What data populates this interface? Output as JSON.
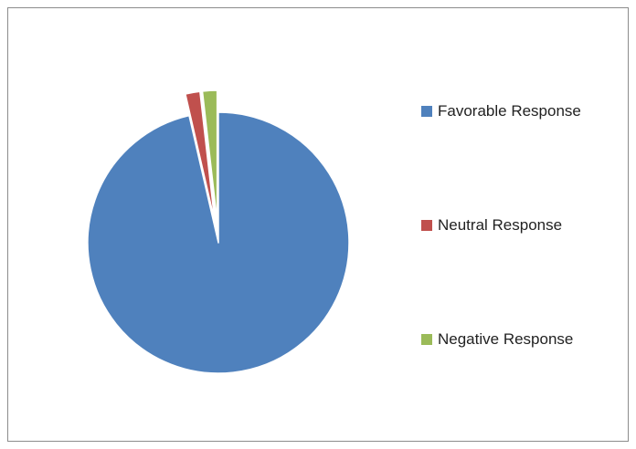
{
  "chart_data": {
    "type": "pie",
    "title": "",
    "categories": [
      "Favorable Response",
      "Neutral Response",
      "Negative Response"
    ],
    "values": [
      96.4,
      1.8,
      1.8
    ],
    "unit": "%",
    "colors": [
      "#4F81BD",
      "#C0504D",
      "#9BBB59"
    ],
    "start_angle_deg": 0,
    "direction": "clockwise",
    "exploded": [
      false,
      true,
      true
    ],
    "legend_position": "right",
    "data_labels": false
  },
  "legend": {
    "items": [
      {
        "label": "Favorable Response",
        "color": "#4F81BD"
      },
      {
        "label": "Neutral Response",
        "color": "#C0504D"
      },
      {
        "label": "Negative Response",
        "color": "#9BBB59"
      }
    ]
  }
}
